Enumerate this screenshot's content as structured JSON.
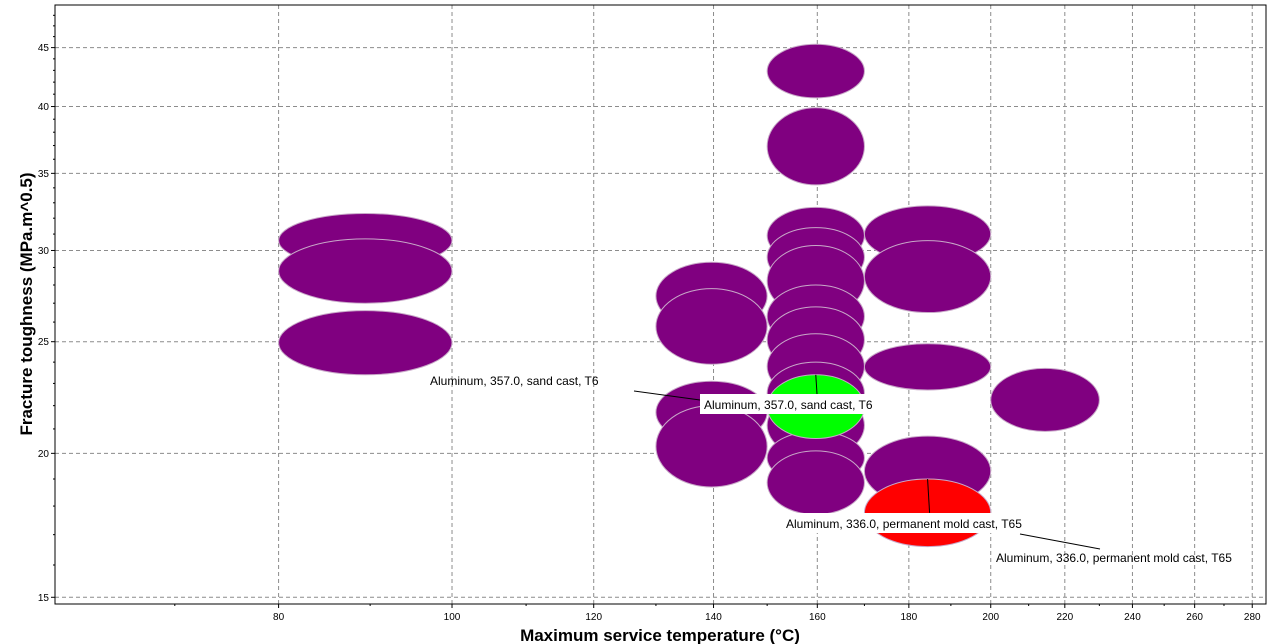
{
  "chart_data": {
    "type": "bubble",
    "xlabel": "Maximum service temperature (°C)",
    "ylabel": "Fracture toughness (MPa.m^0.5)",
    "xscale": "log",
    "yscale": "log",
    "xlim": [
      60,
      285
    ],
    "ylim": [
      14.8,
      49
    ],
    "x_ticks": [
      80,
      100,
      120,
      140,
      160,
      180,
      200,
      220,
      240,
      260,
      280
    ],
    "y_ticks": [
      15,
      20,
      25,
      30,
      35,
      40,
      45
    ],
    "grid": true,
    "colors": {
      "default": "#800080",
      "highlight_green": "#00ff00",
      "highlight_red": "#ff0000",
      "edge": "#c8a8c8",
      "grid": "#8c8c8c"
    },
    "bubbles": [
      {
        "x": [
          80,
          100
        ],
        "y": [
          29,
          32.3
        ],
        "color": "default"
      },
      {
        "x": [
          80,
          100
        ],
        "y": [
          27,
          30.7
        ],
        "color": "default"
      },
      {
        "x": [
          80,
          100
        ],
        "y": [
          23.4,
          26.6
        ],
        "color": "default"
      },
      {
        "x": [
          130,
          150
        ],
        "y": [
          25.6,
          29.3
        ],
        "color": "default"
      },
      {
        "x": [
          130,
          150
        ],
        "y": [
          23.9,
          27.8
        ],
        "color": "default"
      },
      {
        "x": [
          130,
          150
        ],
        "y": [
          20.4,
          23.1
        ],
        "color": "default"
      },
      {
        "x": [
          130,
          150
        ],
        "y": [
          18.7,
          22
        ],
        "color": "default"
      },
      {
        "x": [
          150,
          170
        ],
        "y": [
          40.7,
          45.3
        ],
        "color": "default"
      },
      {
        "x": [
          150,
          170
        ],
        "y": [
          34.2,
          39.9
        ],
        "color": "default"
      },
      {
        "x": [
          150,
          170
        ],
        "y": [
          29.2,
          32.7
        ],
        "color": "default"
      },
      {
        "x": [
          150,
          170
        ],
        "y": [
          27.9,
          31.4
        ],
        "color": "default"
      },
      {
        "x": [
          150,
          170
        ],
        "y": [
          26.3,
          30.3
        ],
        "color": "default"
      },
      {
        "x": [
          150,
          170
        ],
        "y": [
          24.7,
          28
        ],
        "color": "default"
      },
      {
        "x": [
          150,
          170
        ],
        "y": [
          23.5,
          26.8
        ],
        "color": "default"
      },
      {
        "x": [
          150,
          170
        ],
        "y": [
          22.3,
          25.4
        ],
        "color": "default"
      },
      {
        "x": [
          150,
          170
        ],
        "y": [
          21.2,
          24
        ],
        "color": "default"
      },
      {
        "x": [
          150,
          170
        ],
        "y": [
          19.8,
          22.6
        ],
        "color": "default"
      },
      {
        "x": [
          150,
          170
        ],
        "y": [
          18.8,
          20.9
        ],
        "color": "default"
      },
      {
        "x": [
          150,
          170
        ],
        "y": [
          17.7,
          20.1
        ],
        "color": "default"
      },
      {
        "x": [
          150,
          170
        ],
        "y": [
          20.6,
          23.4
        ],
        "color": "highlight_green",
        "label": "Aluminum, 357.0, sand cast, T6"
      },
      {
        "x": [
          170,
          200
        ],
        "y": [
          29.3,
          32.8
        ],
        "color": "default"
      },
      {
        "x": [
          170,
          200
        ],
        "y": [
          26.5,
          30.6
        ],
        "color": "default"
      },
      {
        "x": [
          170,
          200
        ],
        "y": [
          22.7,
          24.9
        ],
        "color": "default"
      },
      {
        "x": [
          170,
          200
        ],
        "y": [
          18,
          20.7
        ],
        "color": "default"
      },
      {
        "x": [
          170,
          200
        ],
        "y": [
          16.6,
          19
        ],
        "color": "highlight_red",
        "label": "Aluminum, 336.0, permanent mold cast, T65"
      },
      {
        "x": [
          200,
          230
        ],
        "y": [
          20.9,
          23.7
        ],
        "color": "default"
      }
    ]
  }
}
